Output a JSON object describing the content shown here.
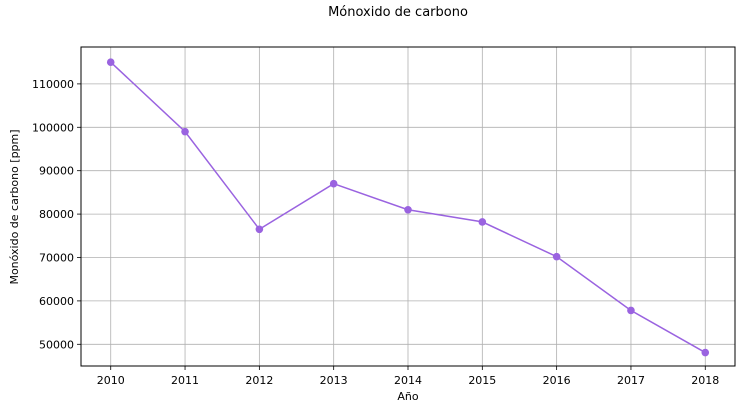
{
  "chart_data": {
    "type": "line",
    "title": "Mónoxido de carbono",
    "xlabel": "Año",
    "ylabel": "Monóxido de carbono [ppm]",
    "x": [
      2010,
      2011,
      2012,
      2013,
      2014,
      2015,
      2016,
      2017,
      2018
    ],
    "series": [
      {
        "values": [
          115000,
          99000,
          76500,
          87000,
          81000,
          78200,
          70200,
          57800,
          48100
        ],
        "color": "#9a63e0",
        "marker": "circle"
      }
    ],
    "xlim": [
      2009.6,
      2018.4
    ],
    "ylim": [
      45000,
      118500
    ],
    "yticks": [
      50000,
      60000,
      70000,
      80000,
      90000,
      100000,
      110000
    ],
    "grid": true
  }
}
